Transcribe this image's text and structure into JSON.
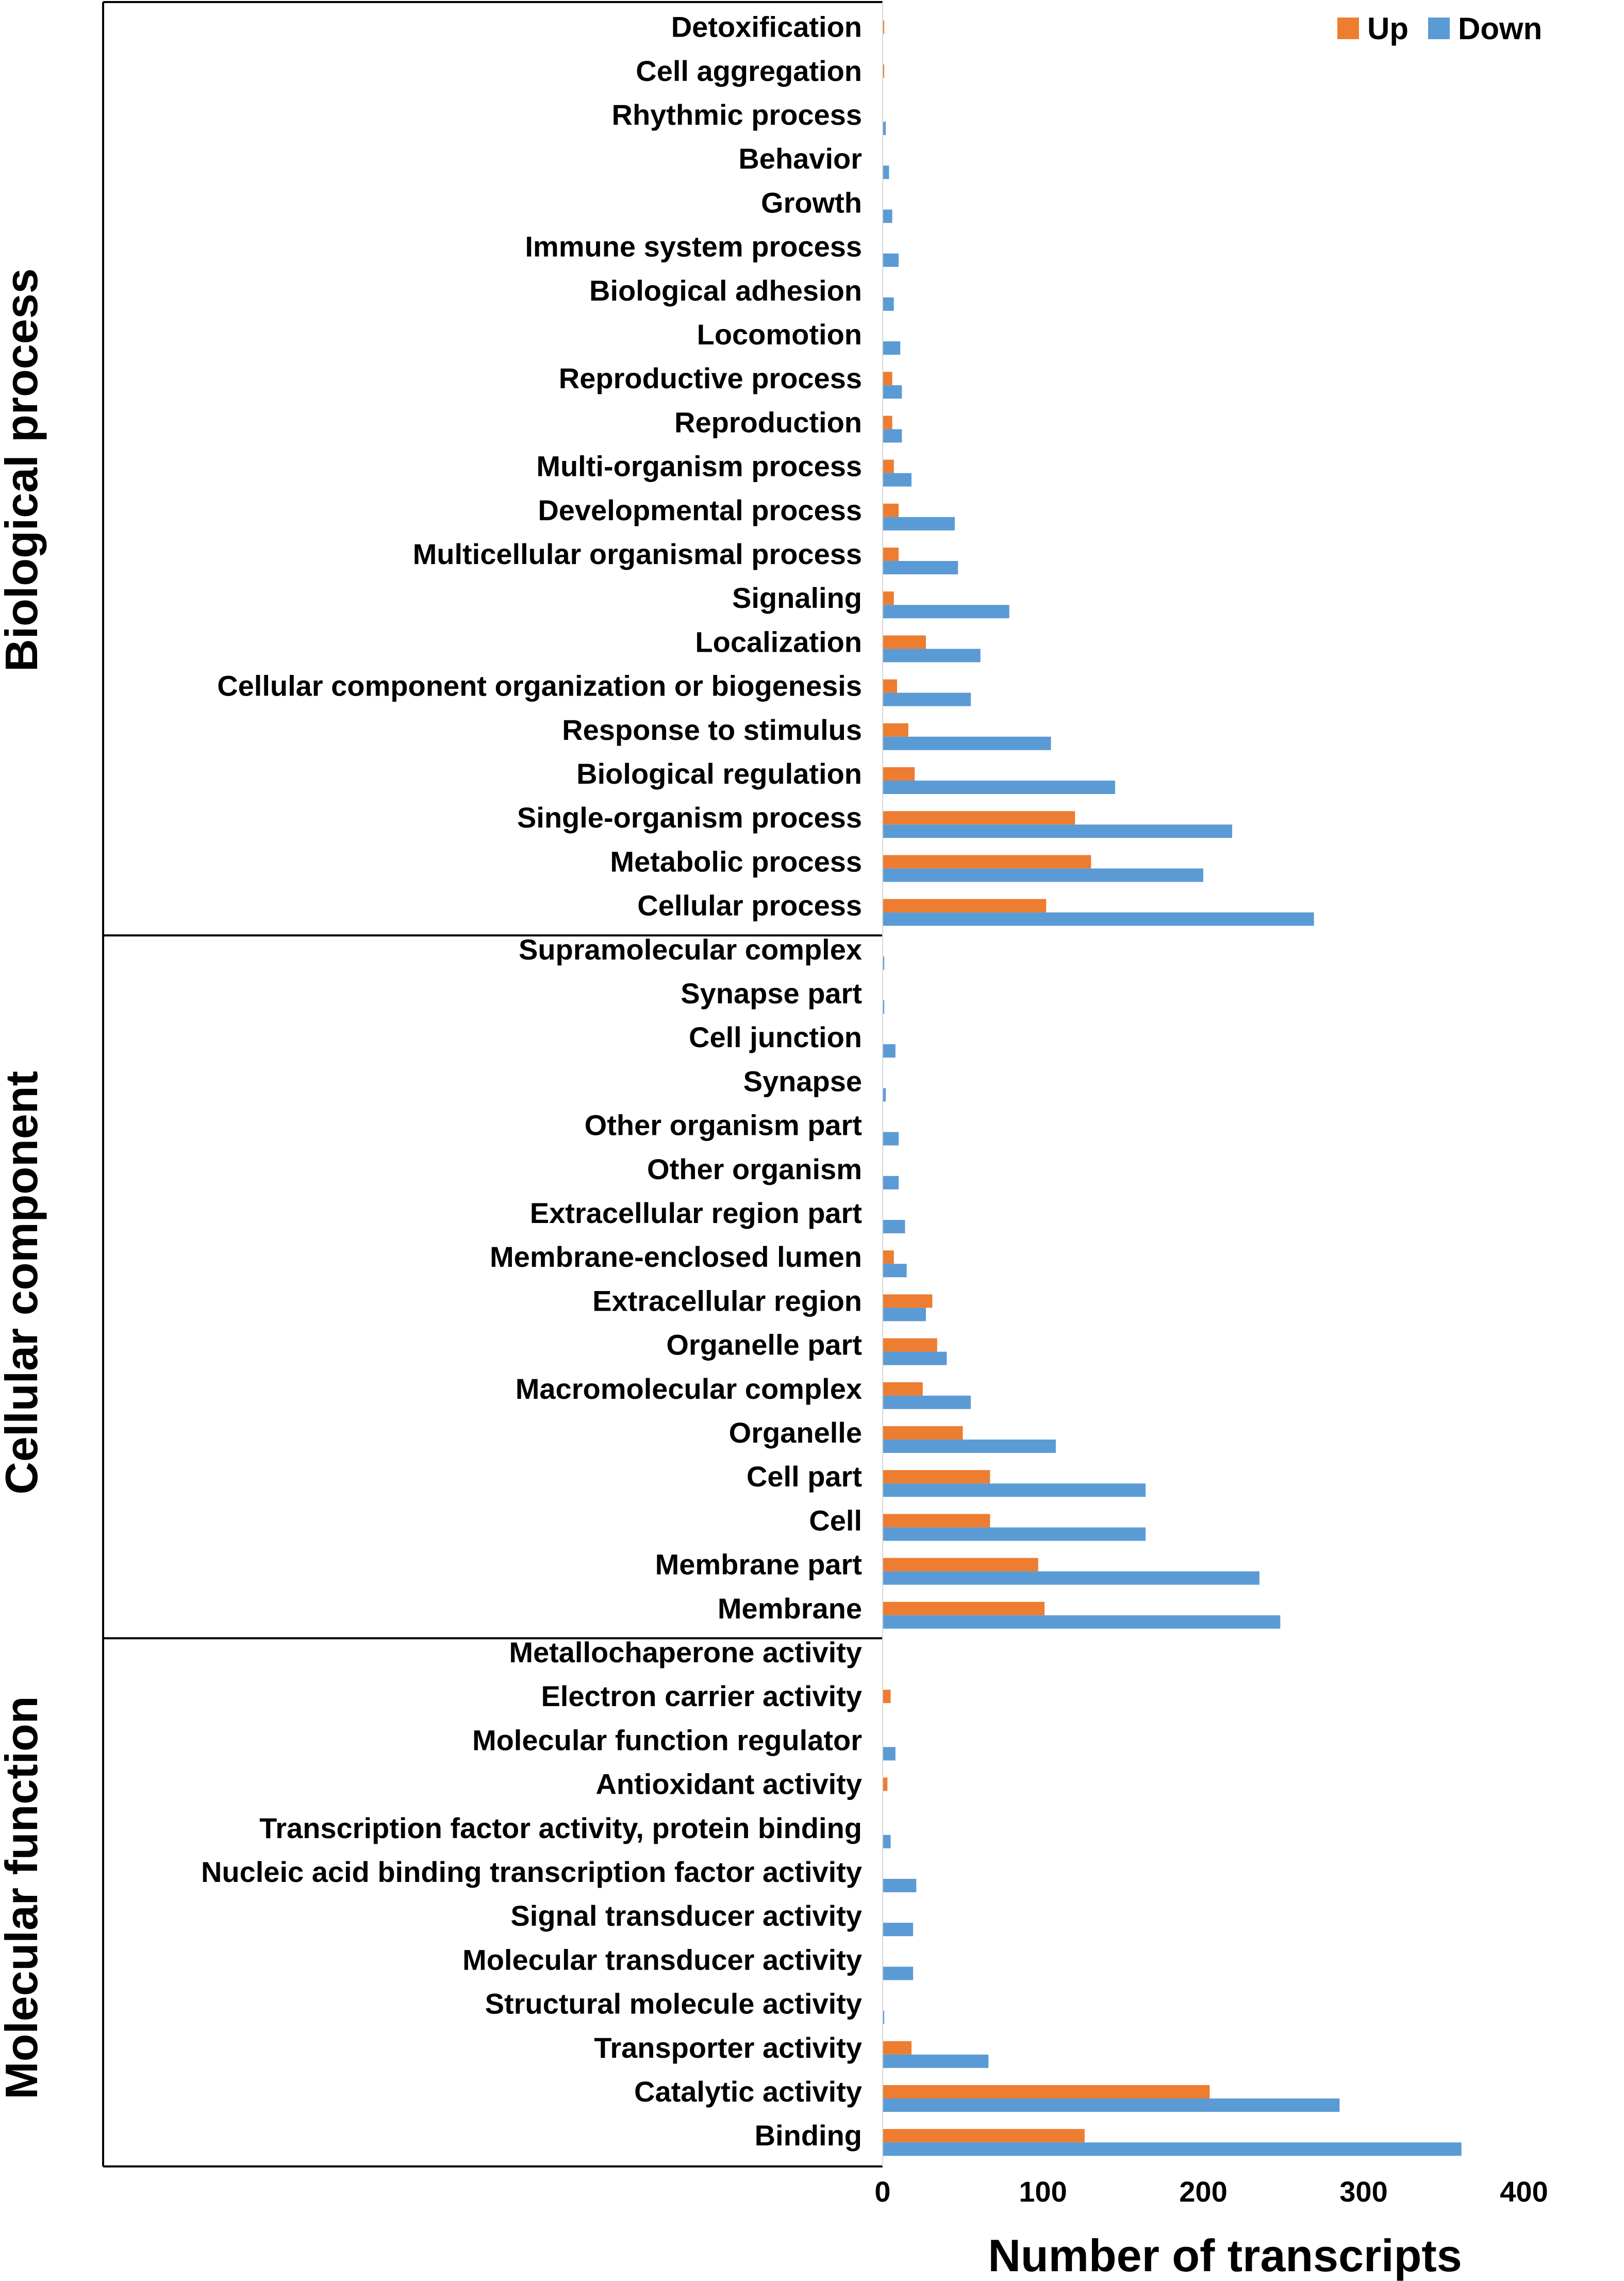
{
  "chart_data": {
    "type": "bar",
    "orientation": "horizontal",
    "xlabel": "Number of transcripts",
    "ylabel": "",
    "xlim": [
      0,
      400
    ],
    "xticks": [
      0,
      100,
      200,
      300,
      400
    ],
    "grid": false,
    "legend_position": "top-right",
    "series": [
      {
        "name": "Up",
        "color": "#ED7D31"
      },
      {
        "name": "Down",
        "color": "#5B9BD5"
      }
    ],
    "groups": [
      {
        "name": "Biological process",
        "categories": [
          {
            "label": "Detoxification",
            "up": 1,
            "down": 0
          },
          {
            "label": "Cell aggregation",
            "up": 1,
            "down": 0
          },
          {
            "label": "Rhythmic process",
            "up": 0,
            "down": 2
          },
          {
            "label": "Behavior",
            "up": 0,
            "down": 4
          },
          {
            "label": "Growth",
            "up": 0,
            "down": 6
          },
          {
            "label": "Immune system process",
            "up": 0,
            "down": 10
          },
          {
            "label": "Biological adhesion",
            "up": 0,
            "down": 7
          },
          {
            "label": "Locomotion",
            "up": 0,
            "down": 11
          },
          {
            "label": "Reproductive process",
            "up": 6,
            "down": 12
          },
          {
            "label": "Reproduction",
            "up": 6,
            "down": 12
          },
          {
            "label": "Multi-organism process",
            "up": 7,
            "down": 18
          },
          {
            "label": "Developmental process",
            "up": 10,
            "down": 45
          },
          {
            "label": "Multicellular organismal process",
            "up": 10,
            "down": 47
          },
          {
            "label": "Signaling",
            "up": 7,
            "down": 79
          },
          {
            "label": "Localization",
            "up": 27,
            "down": 61
          },
          {
            "label": "Cellular component organization or biogenesis",
            "up": 9,
            "down": 55
          },
          {
            "label": "Response to stimulus",
            "up": 16,
            "down": 105
          },
          {
            "label": "Biological regulation",
            "up": 20,
            "down": 145
          },
          {
            "label": "Single-organism process",
            "up": 120,
            "down": 218
          },
          {
            "label": "Metabolic process",
            "up": 130,
            "down": 200
          },
          {
            "label": "Cellular process",
            "up": 102,
            "down": 269
          }
        ]
      },
      {
        "name": "Cellular component",
        "categories": [
          {
            "label": "Supramolecular complex",
            "up": 0,
            "down": 1
          },
          {
            "label": "Synapse part",
            "up": 0,
            "down": 1
          },
          {
            "label": "Cell junction",
            "up": 0,
            "down": 8
          },
          {
            "label": "Synapse",
            "up": 0,
            "down": 2
          },
          {
            "label": "Other organism part",
            "up": 0,
            "down": 10
          },
          {
            "label": "Other organism",
            "up": 0,
            "down": 10
          },
          {
            "label": "Extracellular region part",
            "up": 0,
            "down": 14
          },
          {
            "label": "Membrane-enclosed lumen",
            "up": 7,
            "down": 15
          },
          {
            "label": "Extracellular region",
            "up": 31,
            "down": 27
          },
          {
            "label": "Organelle part",
            "up": 34,
            "down": 40
          },
          {
            "label": "Macromolecular complex",
            "up": 25,
            "down": 55
          },
          {
            "label": "Organelle",
            "up": 50,
            "down": 108
          },
          {
            "label": "Cell part",
            "up": 67,
            "down": 164
          },
          {
            "label": "Cell",
            "up": 67,
            "down": 164
          },
          {
            "label": "Membrane part",
            "up": 97,
            "down": 235
          },
          {
            "label": "Membrane",
            "up": 101,
            "down": 248
          }
        ]
      },
      {
        "name": "Molecular function",
        "categories": [
          {
            "label": "Metallochaperone activity",
            "up": 0,
            "down": 0
          },
          {
            "label": "Electron carrier activity",
            "up": 5,
            "down": 0
          },
          {
            "label": "Molecular function regulator",
            "up": 0,
            "down": 8
          },
          {
            "label": "Antioxidant activity",
            "up": 3,
            "down": 0
          },
          {
            "label": "Transcription factor activity, protein binding",
            "up": 0,
            "down": 5
          },
          {
            "label": "Nucleic acid binding transcription factor activity",
            "up": 0,
            "down": 21
          },
          {
            "label": "Signal transducer activity",
            "up": 0,
            "down": 19
          },
          {
            "label": "Molecular transducer activity",
            "up": 0,
            "down": 19
          },
          {
            "label": "Structural molecule activity",
            "up": 0,
            "down": 1
          },
          {
            "label": "Transporter activity",
            "up": 18,
            "down": 66
          },
          {
            "label": "Catalytic activity",
            "up": 204,
            "down": 285
          },
          {
            "label": "Binding",
            "up": 126,
            "down": 361
          }
        ]
      }
    ]
  }
}
